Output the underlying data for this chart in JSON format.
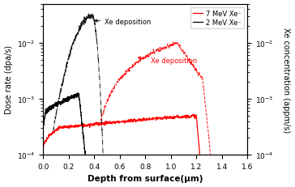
{
  "xlabel": "Depth from surface(μm)",
  "ylabel_left": "Dose rate (dpa/s)",
  "ylabel_right": "Xe concentration (appm/s)",
  "xlim": [
    0.0,
    1.6
  ],
  "ylim_left": [
    0.0001,
    0.05
  ],
  "ylim_right": [
    0.0001,
    0.05
  ],
  "legend": [
    "7 MeV Xe⁻",
    "2 MeV Xe⁻"
  ],
  "annotation1": "Xe deposition",
  "annotation2": "Xe deposition"
}
